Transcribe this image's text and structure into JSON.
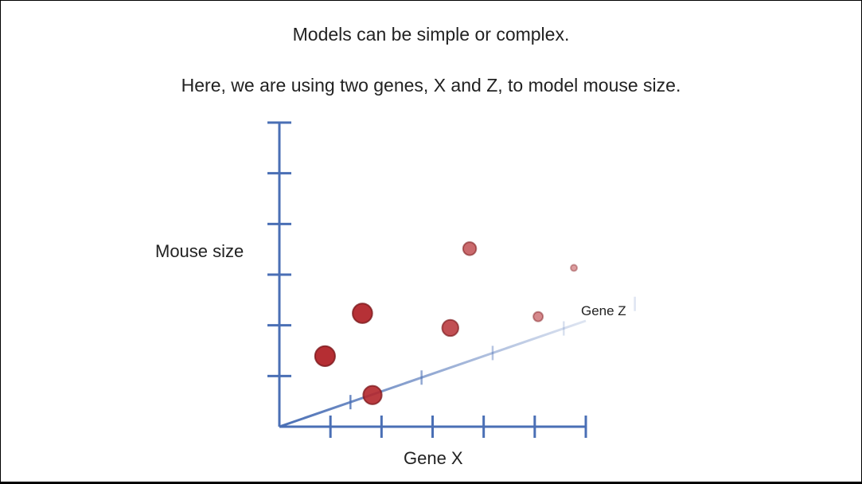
{
  "slide": {
    "title": "Models can be simple or complex.",
    "subtitle": "Here, we are using two genes, X and Z, to model mouse size."
  },
  "chart_data": {
    "type": "scatter",
    "title": "",
    "xlabel": "Gene X",
    "ylabel": "Mouse size",
    "zlabel": "Gene Z",
    "xlim": [
      0,
      6
    ],
    "ylim": [
      0,
      6
    ],
    "zlim": [
      0,
      6
    ],
    "x_ticks": 6,
    "y_ticks": 6,
    "z_ticks": 5,
    "points": [
      {
        "x": 0.83,
        "y": 1.37,
        "z": 0.3
      },
      {
        "x": 1.52,
        "y": 2.2,
        "z": 0.5
      },
      {
        "x": 1.61,
        "y": 0.55,
        "z": 1.0
      },
      {
        "x": 2.92,
        "y": 1.8,
        "z": 2.0
      },
      {
        "x": 3.0,
        "y": 3.26,
        "z": 3.4
      },
      {
        "x": 4.0,
        "y": 1.8,
        "z": 5.0
      },
      {
        "x": 4.38,
        "y": 2.65,
        "z": 6.5
      }
    ],
    "colors": {
      "axis": "#4a6fb5",
      "point": "#b3282d",
      "point_stroke": "#7a1518"
    }
  }
}
